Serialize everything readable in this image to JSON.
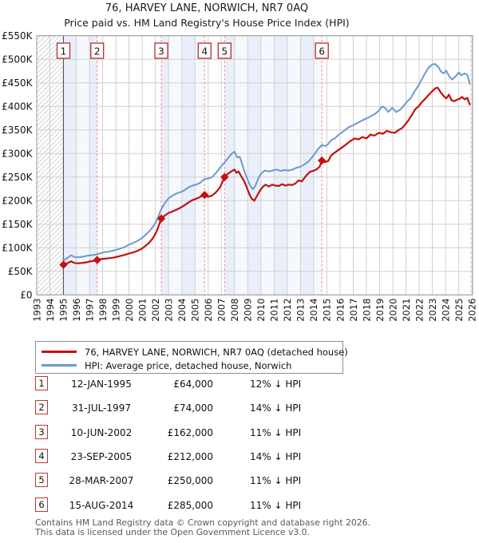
{
  "title": {
    "line1": "76, HARVEY LANE, NORWICH, NR7 0AQ",
    "line2": "Price paid vs. HM Land Registry's House Price Index (HPI)"
  },
  "chart_data": {
    "type": "line",
    "title": "76, HARVEY LANE, NORWICH, NR7 0AQ",
    "subtitle": "Price paid vs. HM Land Registry's House Price Index (HPI)",
    "x_ticks": [
      1993,
      1994,
      1995,
      1996,
      1997,
      1998,
      1999,
      2000,
      2001,
      2002,
      2003,
      2004,
      2005,
      2006,
      2007,
      2008,
      2009,
      2010,
      2011,
      2012,
      2013,
      2014,
      2015,
      2016,
      2017,
      2018,
      2019,
      2020,
      2021,
      2022,
      2023,
      2024,
      2025,
      2026
    ],
    "y_ticks": [
      0,
      50,
      100,
      150,
      200,
      250,
      300,
      350,
      400,
      450,
      500,
      550
    ],
    "y_tick_labels": [
      "£0",
      "£50K",
      "£100K",
      "£150K",
      "£200K",
      "£250K",
      "£300K",
      "£350K",
      "£400K",
      "£450K",
      "£500K",
      "£550K"
    ],
    "x_range": [
      1993,
      2026.05
    ],
    "y_range_k": [
      0,
      550
    ],
    "grid": true,
    "no_data_before": 1995.03,
    "no_data_after": 2025.83,
    "colors": {
      "price_line": "#c40f0f",
      "hpi_line": "#6d99cc",
      "marker_dash": "#f57d7d",
      "band_a": "#e9effa",
      "band_b": "#f5f8fd",
      "grid": "#d0d0d0",
      "frame": "#999999",
      "hatch": "#c9cdd4",
      "flag_border": "#c43535",
      "boundary": "#555555"
    },
    "series": [
      {
        "name": "76, HARVEY LANE, NORWICH, NR7 0AQ (detached house)",
        "color": "#c40f0f",
        "points": [
          [
            1995.03,
            64
          ],
          [
            1995.3,
            67
          ],
          [
            1995.6,
            71
          ],
          [
            1995.85,
            68
          ],
          [
            1996.1,
            67
          ],
          [
            1996.45,
            68
          ],
          [
            1996.75,
            69
          ],
          [
            1997.05,
            71
          ],
          [
            1997.3,
            72
          ],
          [
            1997.58,
            74
          ],
          [
            1997.9,
            76
          ],
          [
            1998.2,
            77
          ],
          [
            1998.5,
            78
          ],
          [
            1998.8,
            79
          ],
          [
            1999.1,
            81
          ],
          [
            1999.4,
            83
          ],
          [
            1999.7,
            85
          ],
          [
            2000.0,
            88
          ],
          [
            2000.3,
            90
          ],
          [
            2000.6,
            93
          ],
          [
            2000.9,
            97
          ],
          [
            2001.2,
            103
          ],
          [
            2001.5,
            110
          ],
          [
            2001.8,
            120
          ],
          [
            2002.1,
            135
          ],
          [
            2002.44,
            162
          ],
          [
            2002.7,
            168
          ],
          [
            2003.0,
            174
          ],
          [
            2003.3,
            177
          ],
          [
            2003.6,
            181
          ],
          [
            2003.9,
            185
          ],
          [
            2004.2,
            190
          ],
          [
            2004.5,
            196
          ],
          [
            2004.8,
            201
          ],
          [
            2005.1,
            204
          ],
          [
            2005.4,
            208
          ],
          [
            2005.73,
            212
          ],
          [
            2006.0,
            208
          ],
          [
            2006.3,
            211
          ],
          [
            2006.6,
            218
          ],
          [
            2006.9,
            228
          ],
          [
            2007.24,
            250
          ],
          [
            2007.5,
            257
          ],
          [
            2007.8,
            263
          ],
          [
            2008.0,
            266
          ],
          [
            2008.15,
            259
          ],
          [
            2008.3,
            262
          ],
          [
            2008.5,
            252
          ],
          [
            2008.7,
            243
          ],
          [
            2008.9,
            230
          ],
          [
            2009.1,
            215
          ],
          [
            2009.3,
            204
          ],
          [
            2009.5,
            200
          ],
          [
            2009.7,
            210
          ],
          [
            2009.9,
            220
          ],
          [
            2010.1,
            228
          ],
          [
            2010.35,
            234
          ],
          [
            2010.6,
            230
          ],
          [
            2010.85,
            234
          ],
          [
            2011.1,
            232
          ],
          [
            2011.35,
            231
          ],
          [
            2011.6,
            235
          ],
          [
            2011.85,
            232
          ],
          [
            2012.1,
            234
          ],
          [
            2012.35,
            233
          ],
          [
            2012.6,
            236
          ],
          [
            2012.85,
            243
          ],
          [
            2013.1,
            241
          ],
          [
            2013.4,
            252
          ],
          [
            2013.7,
            261
          ],
          [
            2013.95,
            263
          ],
          [
            2014.2,
            266
          ],
          [
            2014.45,
            272
          ],
          [
            2014.62,
            285
          ],
          [
            2014.85,
            282
          ],
          [
            2015.1,
            284
          ],
          [
            2015.3,
            295
          ],
          [
            2015.55,
            301
          ],
          [
            2015.8,
            306
          ],
          [
            2016.1,
            312
          ],
          [
            2016.4,
            318
          ],
          [
            2016.75,
            326
          ],
          [
            2017.1,
            332
          ],
          [
            2017.4,
            330
          ],
          [
            2017.7,
            335
          ],
          [
            2018.0,
            332
          ],
          [
            2018.3,
            340
          ],
          [
            2018.6,
            338
          ],
          [
            2018.95,
            344
          ],
          [
            2019.25,
            342
          ],
          [
            2019.55,
            348
          ],
          [
            2019.85,
            345
          ],
          [
            2020.15,
            344
          ],
          [
            2020.45,
            350
          ],
          [
            2020.7,
            354
          ],
          [
            2020.95,
            362
          ],
          [
            2021.2,
            371
          ],
          [
            2021.45,
            382
          ],
          [
            2021.7,
            394
          ],
          [
            2021.95,
            400
          ],
          [
            2022.2,
            409
          ],
          [
            2022.45,
            416
          ],
          [
            2022.7,
            424
          ],
          [
            2022.95,
            431
          ],
          [
            2023.2,
            438
          ],
          [
            2023.4,
            440
          ],
          [
            2023.6,
            431
          ],
          [
            2023.85,
            422
          ],
          [
            2024.05,
            417
          ],
          [
            2024.25,
            425
          ],
          [
            2024.45,
            413
          ],
          [
            2024.65,
            411
          ],
          [
            2024.85,
            414
          ],
          [
            2025.05,
            416
          ],
          [
            2025.25,
            420
          ],
          [
            2025.45,
            415
          ],
          [
            2025.65,
            418
          ],
          [
            2025.83,
            404
          ]
        ]
      },
      {
        "name": "HPI: Average price, detached house, Norwich",
        "color": "#6d99cc",
        "points": [
          [
            1995.03,
            73
          ],
          [
            1995.3,
            78
          ],
          [
            1995.6,
            84
          ],
          [
            1995.9,
            80
          ],
          [
            1996.2,
            80
          ],
          [
            1996.5,
            81
          ],
          [
            1996.8,
            83
          ],
          [
            1997.1,
            84
          ],
          [
            1997.35,
            85
          ],
          [
            1997.58,
            86
          ],
          [
            1997.9,
            89
          ],
          [
            1998.2,
            91
          ],
          [
            1998.5,
            92
          ],
          [
            1998.8,
            94
          ],
          [
            1999.1,
            96
          ],
          [
            1999.4,
            99
          ],
          [
            1999.7,
            102
          ],
          [
            2000.0,
            107
          ],
          [
            2000.3,
            110
          ],
          [
            2000.6,
            114
          ],
          [
            2000.9,
            119
          ],
          [
            2001.2,
            126
          ],
          [
            2001.5,
            134
          ],
          [
            2001.8,
            144
          ],
          [
            2002.1,
            158
          ],
          [
            2002.44,
            182
          ],
          [
            2002.7,
            194
          ],
          [
            2003.0,
            205
          ],
          [
            2003.3,
            211
          ],
          [
            2003.6,
            215
          ],
          [
            2003.9,
            218
          ],
          [
            2004.2,
            222
          ],
          [
            2004.5,
            228
          ],
          [
            2004.8,
            232
          ],
          [
            2005.1,
            234
          ],
          [
            2005.4,
            238
          ],
          [
            2005.73,
            246
          ],
          [
            2006.0,
            247
          ],
          [
            2006.3,
            250
          ],
          [
            2006.6,
            259
          ],
          [
            2006.9,
            270
          ],
          [
            2007.24,
            281
          ],
          [
            2007.5,
            290
          ],
          [
            2007.8,
            300
          ],
          [
            2008.0,
            304
          ],
          [
            2008.2,
            292
          ],
          [
            2008.4,
            293
          ],
          [
            2008.6,
            276
          ],
          [
            2008.8,
            258
          ],
          [
            2009.0,
            244
          ],
          [
            2009.2,
            231
          ],
          [
            2009.4,
            224
          ],
          [
            2009.6,
            233
          ],
          [
            2009.8,
            247
          ],
          [
            2010.0,
            257
          ],
          [
            2010.3,
            264
          ],
          [
            2010.6,
            262
          ],
          [
            2010.9,
            264
          ],
          [
            2011.2,
            266
          ],
          [
            2011.5,
            263
          ],
          [
            2011.8,
            265
          ],
          [
            2012.1,
            264
          ],
          [
            2012.4,
            266
          ],
          [
            2012.7,
            270
          ],
          [
            2013.0,
            272
          ],
          [
            2013.3,
            277
          ],
          [
            2013.6,
            283
          ],
          [
            2013.9,
            293
          ],
          [
            2014.1,
            300
          ],
          [
            2014.35,
            310
          ],
          [
            2014.62,
            318
          ],
          [
            2014.9,
            316
          ],
          [
            2015.1,
            320
          ],
          [
            2015.35,
            329
          ],
          [
            2015.6,
            332
          ],
          [
            2015.9,
            340
          ],
          [
            2016.2,
            346
          ],
          [
            2016.6,
            355
          ],
          [
            2017.0,
            360
          ],
          [
            2017.4,
            366
          ],
          [
            2017.8,
            372
          ],
          [
            2018.2,
            377
          ],
          [
            2018.6,
            383
          ],
          [
            2018.9,
            390
          ],
          [
            2019.2,
            400
          ],
          [
            2019.45,
            396
          ],
          [
            2019.66,
            388
          ],
          [
            2019.95,
            397
          ],
          [
            2020.27,
            388
          ],
          [
            2020.6,
            394
          ],
          [
            2020.9,
            404
          ],
          [
            2021.1,
            411
          ],
          [
            2021.35,
            417
          ],
          [
            2021.6,
            430
          ],
          [
            2021.9,
            442
          ],
          [
            2022.15,
            455
          ],
          [
            2022.4,
            468
          ],
          [
            2022.7,
            482
          ],
          [
            2023.0,
            489
          ],
          [
            2023.2,
            490
          ],
          [
            2023.45,
            484
          ],
          [
            2023.65,
            474
          ],
          [
            2023.85,
            470
          ],
          [
            2024.05,
            476
          ],
          [
            2024.25,
            465
          ],
          [
            2024.5,
            457
          ],
          [
            2024.75,
            463
          ],
          [
            2025.0,
            472
          ],
          [
            2025.2,
            466
          ],
          [
            2025.45,
            470
          ],
          [
            2025.65,
            467
          ],
          [
            2025.83,
            448
          ]
        ]
      }
    ],
    "purchases": [
      {
        "n": "1",
        "date": "12-JAN-1995",
        "price_label": "£64,000",
        "hpi_label": "12% ↓ HPI",
        "year": 1995.03,
        "price_k": 64
      },
      {
        "n": "2",
        "date": "31-JUL-1997",
        "price_label": "£74,000",
        "hpi_label": "14% ↓ HPI",
        "year": 1997.58,
        "price_k": 74
      },
      {
        "n": "3",
        "date": "10-JUN-2002",
        "price_label": "£162,000",
        "hpi_label": "11% ↓ HPI",
        "year": 2002.44,
        "price_k": 162
      },
      {
        "n": "4",
        "date": "23-SEP-2005",
        "price_label": "£212,000",
        "hpi_label": "14% ↓ HPI",
        "year": 2005.73,
        "price_k": 212
      },
      {
        "n": "5",
        "date": "28-MAR-2007",
        "price_label": "£250,000",
        "hpi_label": "11% ↓ HPI",
        "year": 2007.24,
        "price_k": 250
      },
      {
        "n": "6",
        "date": "15-AUG-2014",
        "price_label": "£285,000",
        "hpi_label": "11% ↓ HPI",
        "year": 2014.62,
        "price_k": 285
      }
    ],
    "legend_position": "bottom-left"
  },
  "footer": {
    "line1": "Contains HM Land Registry data © Crown copyright and database right 2026.",
    "line2": "This data is licensed under the Open Government Licence v3.0."
  }
}
